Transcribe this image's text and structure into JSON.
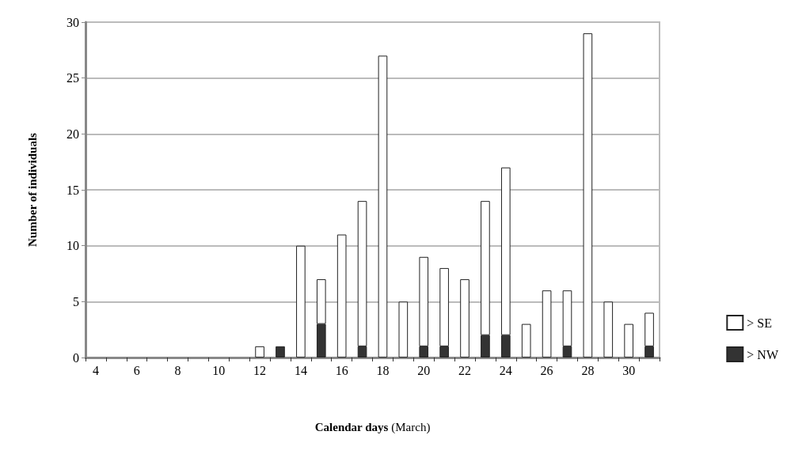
{
  "chart_data": {
    "type": "bar",
    "stacked": true,
    "xlabel": "Calendar days (March)",
    "ylabel": "Number of individuals",
    "categories": [
      "4",
      null,
      "6",
      null,
      "8",
      null,
      "10",
      null,
      "12",
      null,
      "14",
      null,
      "16",
      null,
      "18",
      null,
      "20",
      null,
      "22",
      null,
      "24",
      null,
      "26",
      null,
      "28",
      null,
      "30",
      null
    ],
    "series": [
      {
        "name": "> NW",
        "color": "#333333",
        "values": [
          0,
          0,
          0,
          0,
          0,
          0,
          0,
          0,
          0,
          1,
          0,
          3,
          0,
          1,
          0,
          0,
          1,
          1,
          0,
          2,
          2,
          0,
          0,
          1,
          0,
          0,
          0,
          1
        ]
      },
      {
        "name": "> SE",
        "color": "#ffffff",
        "values": [
          0,
          0,
          0,
          0,
          0,
          0,
          0,
          0,
          1,
          0,
          10,
          4,
          11,
          13,
          27,
          5,
          8,
          7,
          7,
          12,
          15,
          3,
          6,
          5,
          29,
          5,
          3,
          3
        ]
      }
    ],
    "ylim": [
      0,
      30
    ],
    "yticks": [
      0,
      5,
      10,
      15,
      20,
      25,
      30
    ],
    "grid": "y",
    "legend": "right"
  }
}
